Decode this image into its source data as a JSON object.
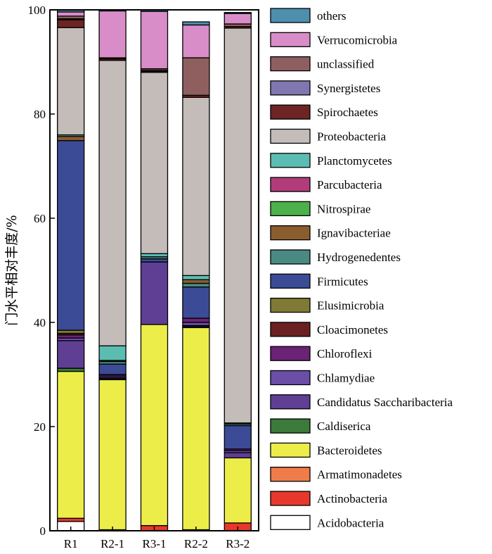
{
  "chart_data": {
    "type": "bar",
    "stacked": true,
    "ylabel": "门水平相对丰度/%",
    "xlabel": "",
    "ylim": [
      0,
      100
    ],
    "yticks": [
      0,
      20,
      40,
      60,
      80,
      100
    ],
    "categories": [
      "R1",
      "R2-1",
      "R3-1",
      "R2-2",
      "R3-2"
    ],
    "legend_position": "right",
    "series": [
      {
        "name": "Acidobacteria",
        "color": "#ffffff",
        "values": [
          1.8,
          0.2,
          0.0,
          0.2,
          0.0
        ]
      },
      {
        "name": "Actinobacteria",
        "color": "#e8382d",
        "values": [
          0.6,
          0.0,
          1.0,
          0.0,
          1.5
        ]
      },
      {
        "name": "Armatimonadetes",
        "color": "#f07c4a",
        "values": [
          0.0,
          0.0,
          0.0,
          0.0,
          0.0
        ]
      },
      {
        "name": "Bacteroidetes",
        "color": "#eded4a",
        "values": [
          28.2,
          28.8,
          38.6,
          38.8,
          12.5
        ]
      },
      {
        "name": "Caldiserica",
        "color": "#3a7a3a",
        "values": [
          0.6,
          0.2,
          0.0,
          0.2,
          0.0
        ]
      },
      {
        "name": "Candidatus Saccharibacteria",
        "color": "#5e3f94",
        "values": [
          5.3,
          0.2,
          12.0,
          0.2,
          1.0
        ]
      },
      {
        "name": "Chlamydiae",
        "color": "#6a4ea8",
        "values": [
          0.5,
          0.3,
          0.0,
          0.6,
          0.4
        ]
      },
      {
        "name": "Chloroflexi",
        "color": "#6a2375",
        "values": [
          0.6,
          0.3,
          0.0,
          0.8,
          0.3
        ]
      },
      {
        "name": "Cloacimonetes",
        "color": "#6b2121",
        "values": [
          0.3,
          0.0,
          0.0,
          0.0,
          0.0
        ]
      },
      {
        "name": "Elusimicrobia",
        "color": "#7f7a35",
        "values": [
          0.6,
          0.0,
          0.0,
          0.0,
          0.0
        ]
      },
      {
        "name": "Firmicutes",
        "color": "#3c4b96",
        "values": [
          36.4,
          2.0,
          0.6,
          6.0,
          4.5
        ]
      },
      {
        "name": "Hydrogenedentes",
        "color": "#4a8a82",
        "values": [
          0.0,
          0.5,
          0.4,
          0.7,
          0.3
        ]
      },
      {
        "name": "Ignavibacteriae",
        "color": "#8a5d2e",
        "values": [
          0.8,
          0.2,
          0.0,
          0.7,
          0.0
        ]
      },
      {
        "name": "Nitrospirae",
        "color": "#4cb04c",
        "values": [
          0.0,
          0.0,
          0.0,
          0.0,
          0.0
        ]
      },
      {
        "name": "Parcubacteria",
        "color": "#b03d7a",
        "values": [
          0.0,
          0.0,
          0.0,
          0.0,
          0.0
        ]
      },
      {
        "name": "Planctomycetes",
        "color": "#5bbdb2",
        "values": [
          0.3,
          2.8,
          0.6,
          0.8,
          0.2
        ]
      },
      {
        "name": "Proteobacteria",
        "color": "#c4bcb9",
        "values": [
          20.6,
          54.8,
          34.8,
          34.2,
          75.8
        ]
      },
      {
        "name": "Spirochaetes",
        "color": "#6e2424",
        "values": [
          1.5,
          0.3,
          0.2,
          0.4,
          0.3
        ]
      },
      {
        "name": "Synergistetes",
        "color": "#8077b0",
        "values": [
          0.2,
          0.0,
          0.2,
          0.0,
          0.0
        ]
      },
      {
        "name": "unclassified",
        "color": "#8f5f5f",
        "values": [
          0.5,
          0.2,
          0.3,
          7.2,
          0.5
        ]
      },
      {
        "name": "Verrucomicrobia",
        "color": "#d88dc8",
        "values": [
          0.8,
          9.0,
          11.0,
          6.3,
          2.0
        ]
      },
      {
        "name": "others",
        "color": "#4d8fad",
        "values": [
          0.4,
          0.1,
          0.3,
          0.6,
          0.2
        ]
      }
    ]
  }
}
